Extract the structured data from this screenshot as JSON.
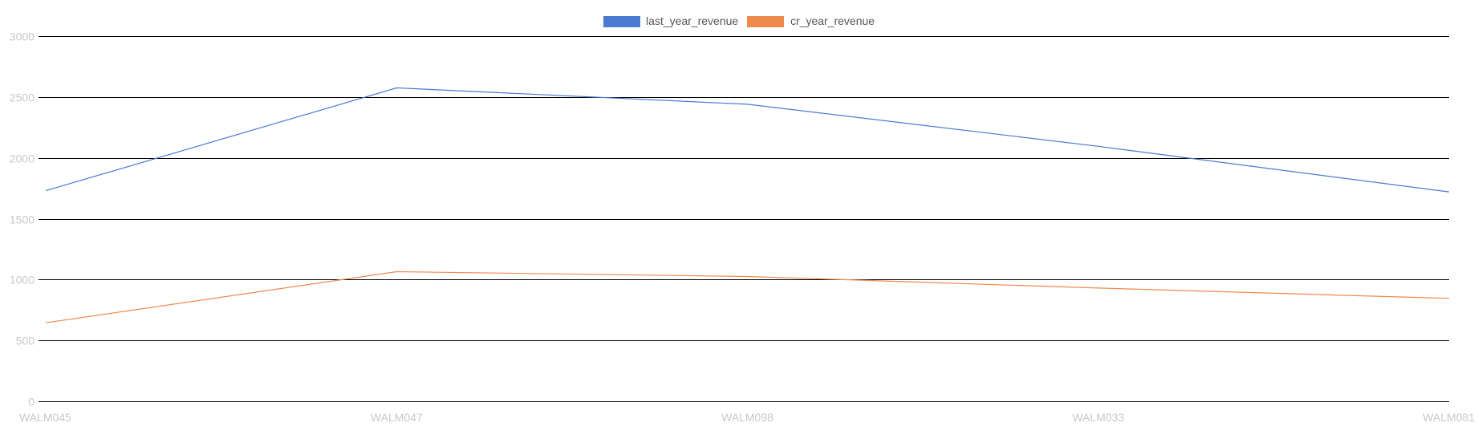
{
  "chart_data": {
    "type": "line",
    "title": "",
    "xlabel": "",
    "ylabel": "",
    "categories": [
      "WALM045",
      "WALM047",
      "WALM098",
      "WALM033",
      "WALM081"
    ],
    "series": [
      {
        "name": "last_year_revenue",
        "color": "#4a7bd0",
        "values": [
          1730,
          2575,
          2440,
          2095,
          1720
        ]
      },
      {
        "name": "cr_year_revenue",
        "color": "#ef8a4f",
        "values": [
          645,
          1065,
          1025,
          930,
          845
        ]
      }
    ],
    "ylim": [
      0,
      3000
    ],
    "yticks": [
      0,
      500,
      1000,
      1500,
      2000,
      2500,
      3000
    ],
    "grid": true,
    "legend_position": "top-center"
  }
}
